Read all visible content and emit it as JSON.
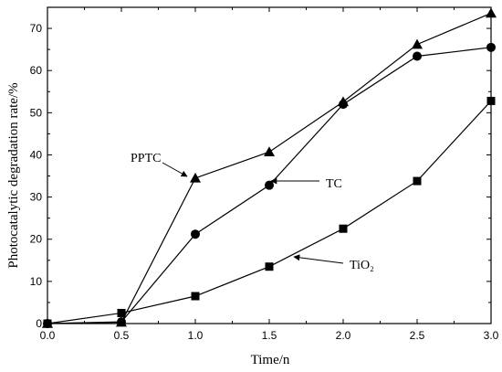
{
  "chart_data": {
    "type": "line",
    "xlabel": "Time/n",
    "ylabel": "Photocatalytic degradation rate/%",
    "xlim": [
      0,
      3
    ],
    "ylim": [
      0,
      75
    ],
    "x_ticks": [
      "0.0",
      "0.5",
      "1.0",
      "1.5",
      "2.0",
      "2.5",
      "3.0"
    ],
    "y_ticks": [
      "0",
      "10",
      "20",
      "30",
      "40",
      "50",
      "60",
      "70"
    ],
    "x": [
      0,
      0.5,
      1.0,
      1.5,
      2.0,
      2.5,
      3.0
    ],
    "grid": false,
    "series": [
      {
        "name": "PPTC",
        "marker": "triangle",
        "values": [
          0,
          0.3,
          34.5,
          40.7,
          52.6,
          66.2,
          73.6
        ]
      },
      {
        "name": "TC",
        "marker": "circle",
        "values": [
          0,
          0.4,
          21.2,
          32.8,
          52.0,
          63.4,
          65.5
        ]
      },
      {
        "name": "TiO₂",
        "marker": "square",
        "values": [
          0,
          2.5,
          6.5,
          13.5,
          22.5,
          33.8,
          52.8
        ]
      }
    ]
  }
}
